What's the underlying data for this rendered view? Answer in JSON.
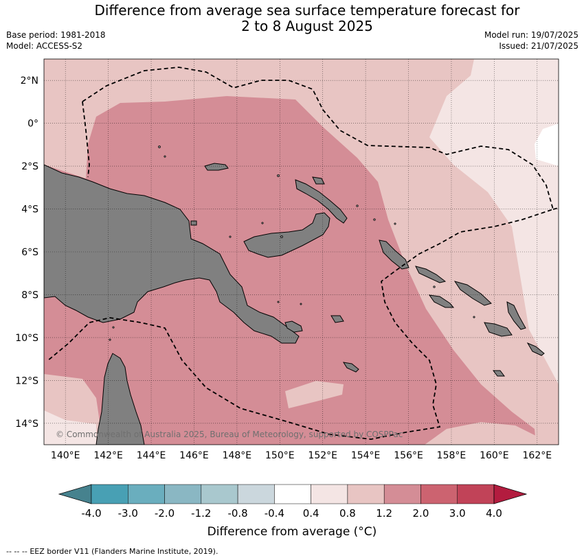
{
  "header": {
    "title_line1": "Difference from average sea surface temperature forecast for",
    "title_line2": "2 to 8 August 2025",
    "base_period": "Base period: 1981-2018",
    "model": "Model: ACCESS-S2",
    "model_run": "Model run: 19/07/2025",
    "issued": "Issued: 21/07/2025"
  },
  "map": {
    "lon_range": [
      139,
      163
    ],
    "lat_range": [
      -15,
      3
    ],
    "lon_ticks": [
      "140°E",
      "142°E",
      "144°E",
      "146°E",
      "148°E",
      "150°E",
      "152°E",
      "154°E",
      "156°E",
      "158°E",
      "160°E",
      "162°E"
    ],
    "lat_ticks": [
      "2°N",
      "0°",
      "2°S",
      "4°S",
      "6°S",
      "8°S",
      "10°S",
      "12°S",
      "14°S"
    ],
    "copyright": "© Commonwealth of Australia 2025, Bureau of Meteorology, supported by COSPPac",
    "land_color": "#808080",
    "fill_colors": {
      "c_0_4_0_8": "#f4e5e4",
      "c_0_8_1_2": "#e8c5c3",
      "c_1_2_2_0": "#d48d96",
      "no_anomaly": "#ffffff"
    }
  },
  "colorbar": {
    "title": "Difference from average (°C)",
    "labels": [
      "-4.0",
      "-3.0",
      "-2.0",
      "-1.2",
      "-0.8",
      "-0.4",
      "0.4",
      "0.8",
      "1.2",
      "2.0",
      "3.0",
      "4.0"
    ],
    "colors": [
      "#46828e",
      "#48a0b4",
      "#6aaebe",
      "#8ab7c3",
      "#a9c8ce",
      "#cbd7dd",
      "#ffffff",
      "#f4e5e4",
      "#e8c5c3",
      "#d48d96",
      "#cc6370",
      "#c14358",
      "#b31c3f"
    ]
  },
  "legend": {
    "eez_marker": "-- -- --",
    "eez_text": "EEZ border V11 (Flanders Marine Institute, 2019)."
  }
}
